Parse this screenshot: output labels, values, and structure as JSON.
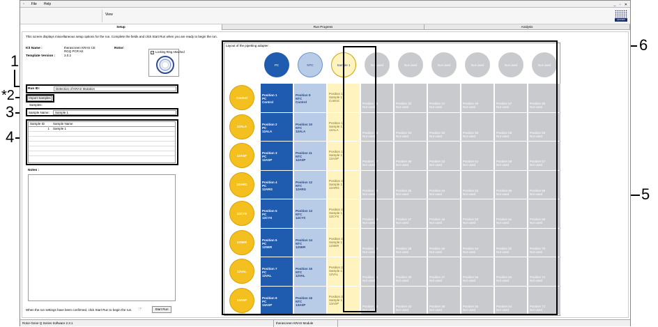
{
  "menu": {
    "file": "File",
    "help": "Help"
  },
  "toolbar": {
    "view_label": "View"
  },
  "tabs": [
    {
      "label": "Setup"
    },
    {
      "label": "Run Progress"
    },
    {
      "label": "Analysis"
    }
  ],
  "setup": {
    "intro": "This screen displays miscellaneous setup options for the run. Complete the fields and click Start Run when you are ready to begin the run.",
    "kit_name_label": "Kit Name :",
    "kit_name_value_1": "therascreen KRAS CE",
    "kit_name_value_2": "RGQ PCR Kit",
    "template_version_label": "Template Version :",
    "template_version_value": "3.0.2",
    "rotor_label": "Rotor:",
    "locking_ring_label": "Locking Ring Attached",
    "run_id_label": "Run ID:",
    "run_id_value": "Detection of KRAS Mutation",
    "import_samples_label": "Import Samples",
    "samples_label": "Samples:",
    "sample_name_label": "Sample Name:",
    "sample_name_value": "Sample 1",
    "grid_headers": [
      "Sample ID",
      "Sample Name"
    ],
    "grid_rows": [
      [
        "1",
        "Sample 1"
      ]
    ],
    "notes_label": "Notes :",
    "start_hint": "When the run settings have been confirmed, click Start Run to begin the run.",
    "start_button": "Start Run"
  },
  "adapter": {
    "title": "Layout of the pipetting adapter:",
    "top": [
      "PC",
      "NTC",
      "Sample 1",
      "Not used",
      "Not used",
      "Not used",
      "Not used",
      "Not used",
      "Not used"
    ],
    "rows": [
      "Control",
      "12ALA",
      "12ASP",
      "12ARG",
      "12CYS",
      "12SER",
      "12VAL",
      "13ASP"
    ],
    "pc": [
      "Position 1",
      "Position 2",
      "Position 3",
      "Position 4",
      "Position 5",
      "Position 6",
      "Position 7",
      "Position 8"
    ],
    "ntc": [
      "Position 9",
      "Position 10",
      "Position 11",
      "Position 12",
      "Position 13",
      "Position 14",
      "Position 15",
      "Position 16"
    ],
    "sample": [
      "Position 17",
      "Position 18",
      "Position 19",
      "Position 20",
      "Position 21",
      "Position 22",
      "Position 23",
      "Position 24"
    ],
    "pc_label": "PC",
    "ntc_label": "NTC",
    "sample_label": "Sample 1",
    "not_used_label": "Not used",
    "unused_positions": [
      [
        "Position 25",
        "Position 33",
        "Position 41",
        "Position 49",
        "Position 57",
        "Position 65"
      ],
      [
        "Position 26",
        "Position 34",
        "Position 42",
        "Position 50",
        "Position 58",
        "Position 66"
      ],
      [
        "Position 27",
        "Position 35",
        "Position 43",
        "Position 51",
        "Position 59",
        "Position 67"
      ],
      [
        "Position 28",
        "Position 36",
        "Position 44",
        "Position 52",
        "Position 60",
        "Position 68"
      ],
      [
        "Position 29",
        "Position 37",
        "Position 45",
        "Position 53",
        "Position 61",
        "Position 69"
      ],
      [
        "Position 30",
        "Position 38",
        "Position 46",
        "Position 54",
        "Position 62",
        "Position 70"
      ],
      [
        "Position 31",
        "Position 39",
        "Position 47",
        "Position 55",
        "Position 63",
        "Position 71"
      ],
      [
        "Position 32",
        "Position 40",
        "Position 48",
        "Position 56",
        "Position 64",
        "Position 72"
      ]
    ]
  },
  "status": {
    "left": "Rotor-Gene Q Series Software 2.3.1",
    "module": "therascreen KRAS Module"
  },
  "callouts": [
    "1",
    "*2",
    "3",
    "4",
    "5",
    "6"
  ],
  "logo_text": "QIAGEN",
  "colors": {
    "pc": "#1f5cb0",
    "ntc": "#b8cce8",
    "sample": "#fff4bf",
    "control": "#f4c020",
    "unused": "#c8cacd"
  }
}
